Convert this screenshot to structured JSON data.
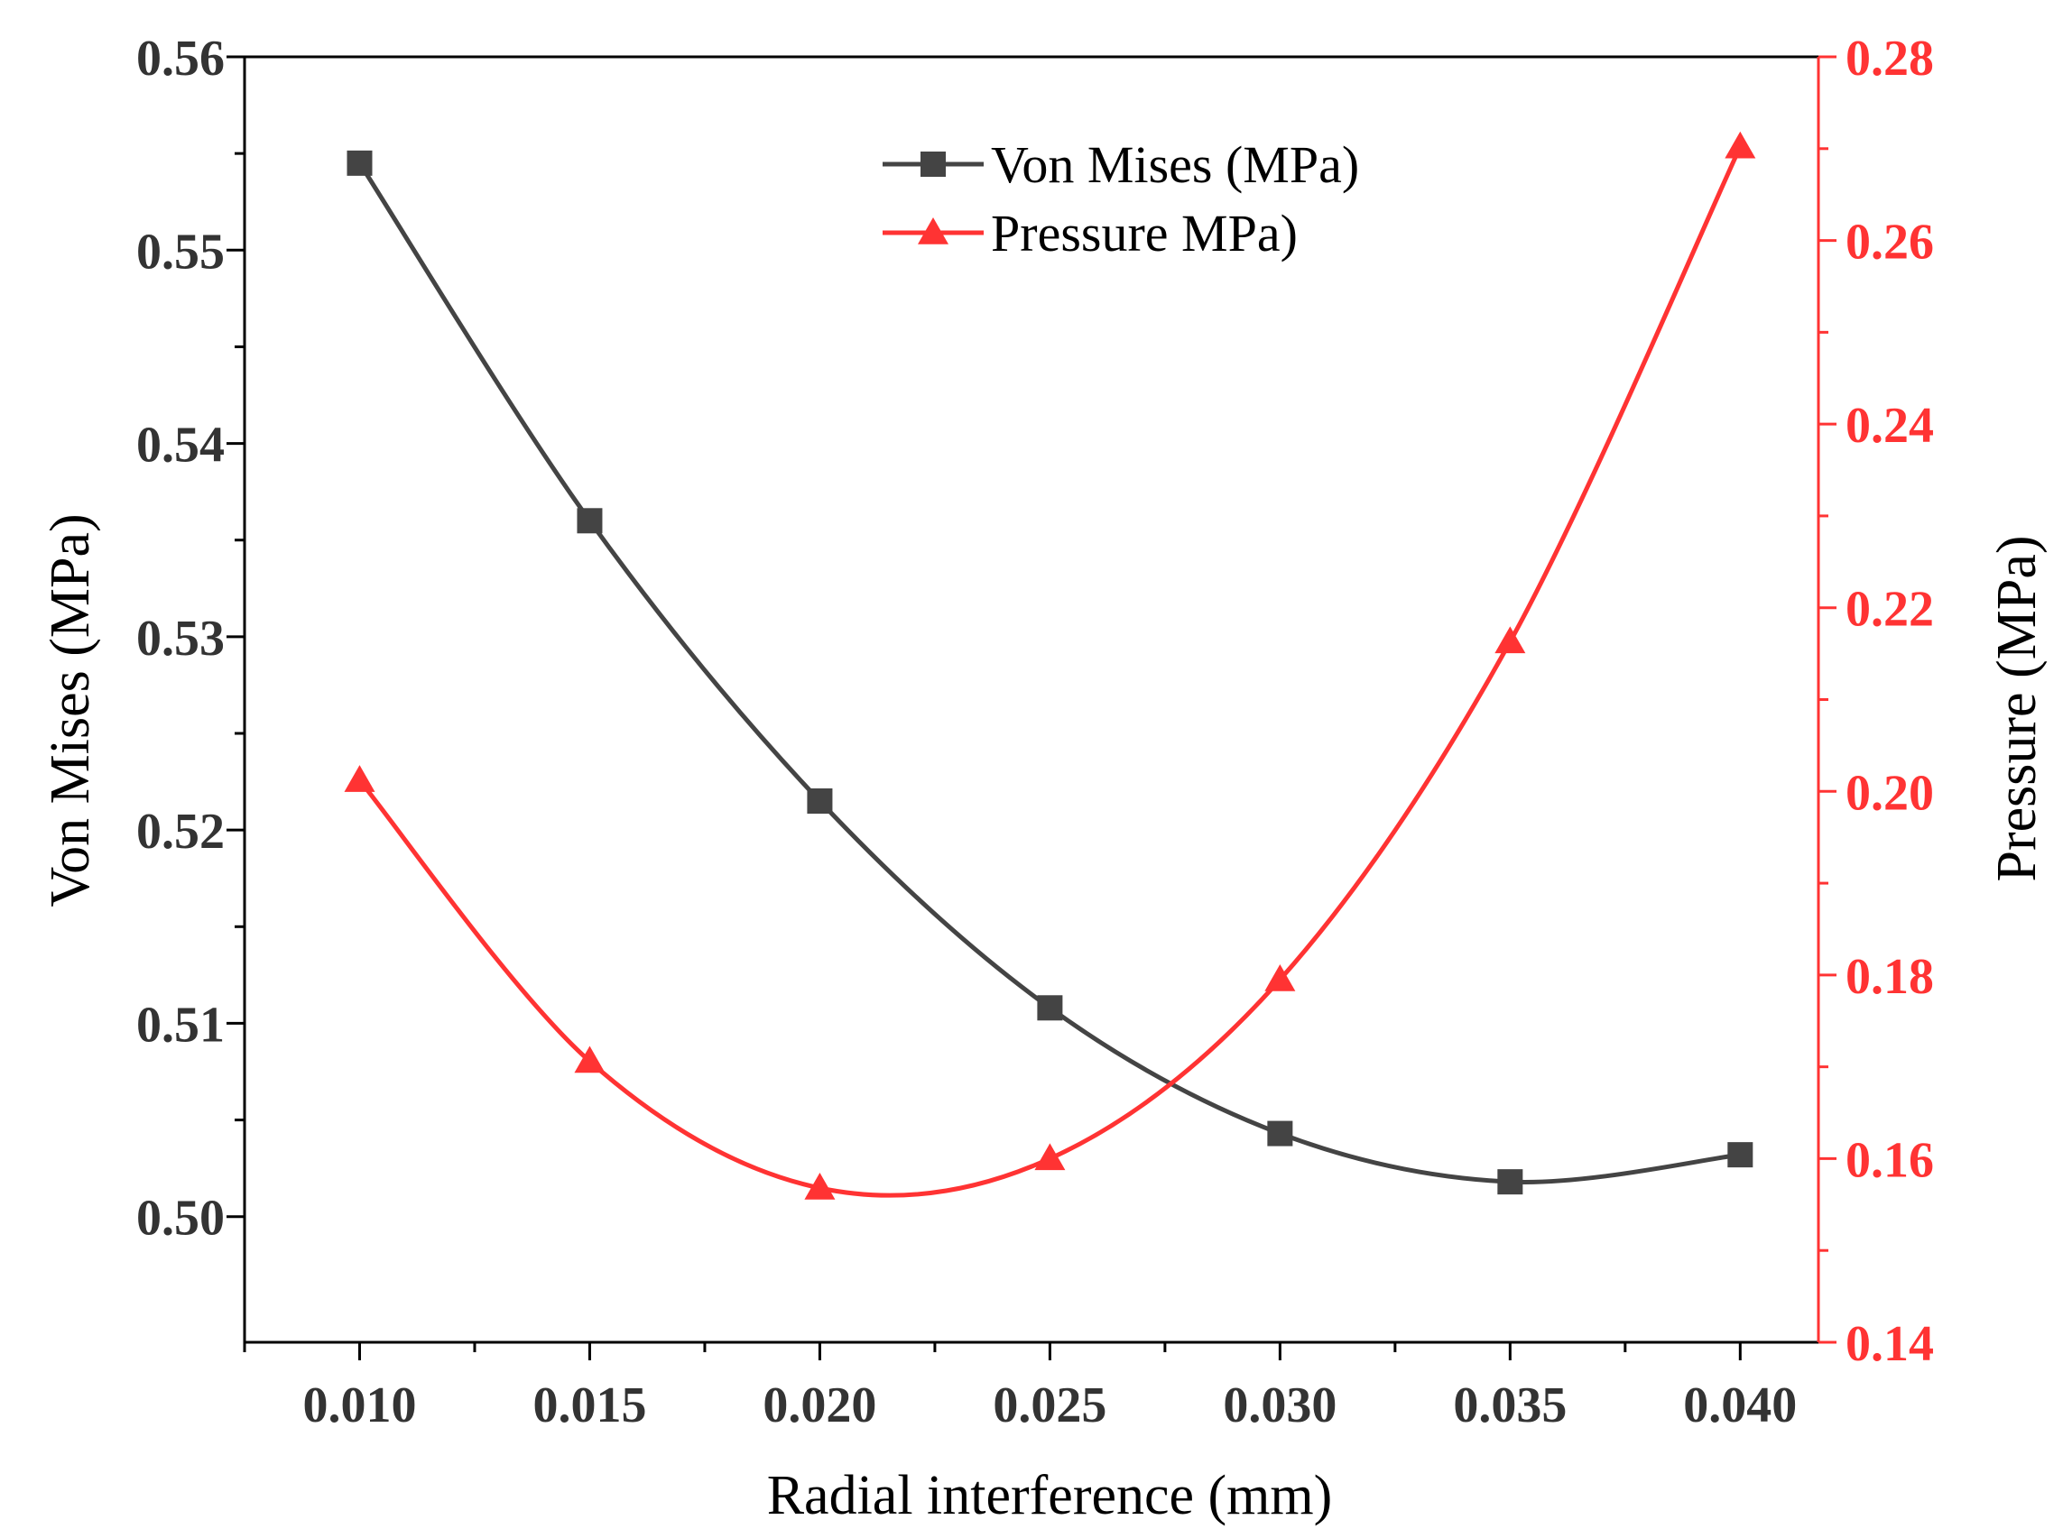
{
  "chart_data": {
    "type": "line",
    "title": "",
    "xlabel": "Radial interference (mm)",
    "ylabel_left": "Von Mises (MPa)",
    "ylabel_right": "Pressure (MPa)",
    "x": [
      0.01,
      0.015,
      0.02,
      0.025,
      0.03,
      0.035,
      0.04
    ],
    "x_tick_labels": [
      "0.010",
      "0.015",
      "0.020",
      "0.025",
      "0.030",
      "0.035",
      "0.040"
    ],
    "xlim": [
      0.0075,
      0.0417
    ],
    "y_left_ticks": [
      "0.50",
      "0.51",
      "0.52",
      "0.53",
      "0.54",
      "0.55",
      "0.56"
    ],
    "y_left_lim": [
      0.4935,
      0.56
    ],
    "y_right_ticks": [
      "0.14",
      "0.16",
      "0.18",
      "0.20",
      "0.22",
      "0.24",
      "0.26",
      "0.28"
    ],
    "y_right_lim": [
      0.14,
      0.28
    ],
    "legend_position": "top-center",
    "series": [
      {
        "name": "Von Mises (MPa)",
        "axis": "left",
        "marker": "square",
        "color": "#444444",
        "values": [
          0.5545,
          0.536,
          0.5215,
          0.5108,
          0.5043,
          0.5018,
          0.5032
        ]
      },
      {
        "name": "Pressure MPa)",
        "axis": "right",
        "marker": "triangle",
        "color": "#ff3333",
        "values": [
          0.2012,
          0.1706,
          0.1568,
          0.16,
          0.1795,
          0.2163,
          0.2702
        ]
      }
    ]
  }
}
